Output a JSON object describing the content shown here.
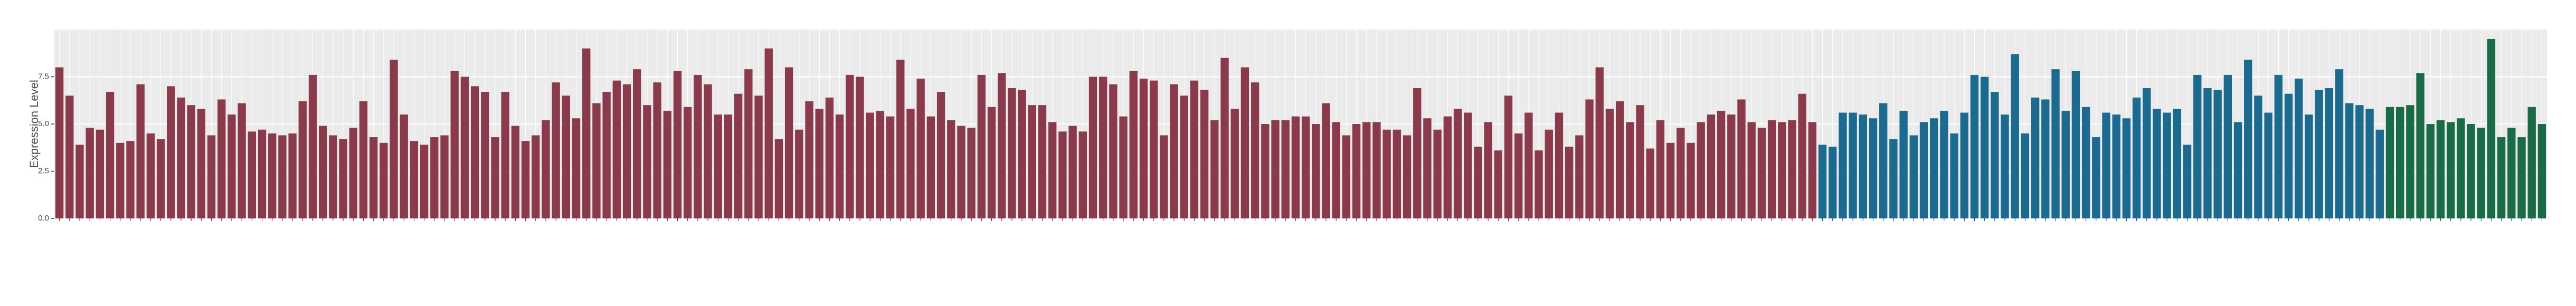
{
  "chart_data": {
    "type": "bar",
    "y_label": "Expression Level",
    "ylim": [
      0,
      10
    ],
    "yticks": [
      {
        "value": 0,
        "label": "0.0"
      },
      {
        "value": 2.5,
        "label": "2.5"
      },
      {
        "value": 5,
        "label": "5.0"
      },
      {
        "value": 7.5,
        "label": "7.5"
      }
    ],
    "grid": true,
    "series": [
      {
        "color": "#8b3a4b",
        "values": [
          8.0,
          6.5,
          3.9,
          4.8,
          4.7,
          6.7,
          4.0,
          4.1,
          7.1,
          4.5,
          4.2,
          7.0,
          6.4,
          6.0,
          5.8,
          4.4,
          6.3,
          5.5,
          6.1,
          4.6,
          4.7,
          4.5,
          4.4,
          4.5,
          6.2,
          7.6,
          4.9,
          4.4,
          4.2,
          4.8,
          6.2,
          4.3,
          4.0,
          8.4,
          5.5,
          4.1,
          3.9,
          4.3,
          4.4,
          7.8,
          7.5,
          7.0,
          6.7,
          4.3,
          6.7,
          4.9,
          4.1,
          4.4,
          5.2,
          7.2,
          6.5,
          5.3,
          9.0,
          6.1,
          6.7,
          7.3,
          7.1,
          7.9,
          6.0,
          7.2,
          5.7,
          7.8,
          5.9,
          7.6,
          7.1,
          5.5,
          5.5,
          6.6,
          7.9,
          6.5,
          9.0,
          4.2,
          8.0,
          4.7,
          6.2,
          5.8,
          6.4,
          5.5,
          7.6,
          7.5,
          5.6,
          5.7,
          5.4,
          8.4,
          5.8,
          7.4,
          5.4,
          6.7,
          5.2,
          4.9,
          4.8,
          7.6,
          5.9,
          7.7,
          6.9,
          6.8,
          6.0,
          6.0,
          5.1,
          4.6,
          4.9,
          4.6,
          7.5,
          7.5,
          7.1,
          5.4,
          7.8,
          7.4,
          7.3,
          4.4,
          7.1,
          6.5,
          7.3,
          6.8,
          5.2,
          8.5,
          5.8,
          8.0,
          7.2,
          5.0,
          5.2,
          5.2,
          5.4,
          5.4,
          5.0,
          6.1,
          5.1,
          4.4,
          5.0,
          5.1,
          5.1,
          4.7,
          4.7,
          4.4,
          6.9,
          5.3,
          4.7,
          5.4,
          5.8,
          5.6,
          3.8,
          5.1,
          3.6,
          6.5,
          4.5,
          5.6,
          3.6,
          4.7,
          5.6,
          3.8,
          4.4,
          6.3,
          8.0,
          5.8,
          6.2,
          5.1,
          6.0,
          3.7,
          5.2,
          4.0,
          4.8,
          4.0,
          5.1,
          5.5,
          5.7,
          5.5,
          6.3,
          5.1,
          4.8,
          5.2,
          5.1,
          5.2,
          6.6,
          5.1
        ]
      },
      {
        "color": "#1b6a8f",
        "values": [
          3.9,
          3.8,
          5.6,
          5.6,
          5.5,
          5.3,
          6.1,
          4.2,
          5.7,
          4.4,
          5.1,
          5.3,
          5.7,
          4.5,
          5.6,
          7.6,
          7.5,
          6.7,
          5.5,
          8.7,
          4.5,
          6.4,
          6.3,
          7.9,
          5.7,
          7.8,
          5.9,
          4.3,
          5.6,
          5.5,
          5.3,
          6.4,
          6.9,
          5.8,
          5.6,
          5.8,
          3.9,
          7.6,
          6.9,
          6.8,
          7.6,
          5.1,
          8.4,
          6.5,
          5.6,
          7.6,
          6.6,
          7.4,
          5.5,
          6.8,
          6.9,
          7.9,
          6.1,
          6.0,
          5.8,
          4.7
        ]
      },
      {
        "color": "#1a6b47",
        "values": [
          5.9,
          5.9,
          6.0,
          7.7,
          5.0,
          5.2,
          5.1,
          5.3,
          5.0,
          4.8,
          9.5,
          4.3,
          4.8,
          4.3,
          5.9,
          5.0
        ]
      }
    ]
  }
}
